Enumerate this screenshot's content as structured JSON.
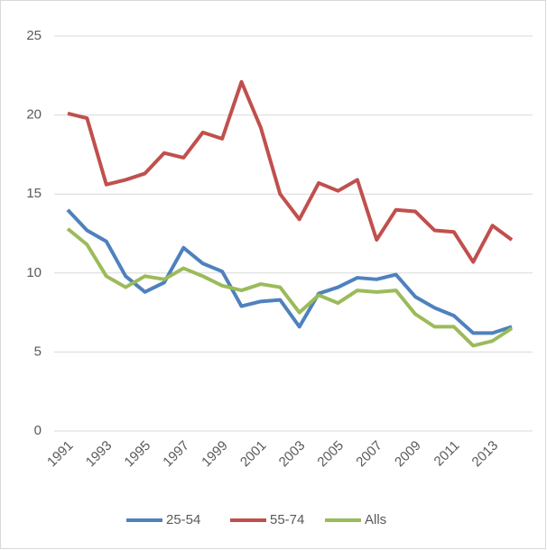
{
  "chart_data": {
    "type": "line",
    "categories": [
      "1991",
      null,
      "1993",
      null,
      "1995",
      null,
      "1997",
      null,
      "1999",
      null,
      "2001",
      null,
      "2003",
      null,
      "2005",
      null,
      "2007",
      null,
      "2009",
      null,
      "2011",
      null,
      "2013",
      null
    ],
    "series": [
      {
        "name": "25-54",
        "color": "#4f81bd",
        "values": [
          14.0,
          12.7,
          12.0,
          9.8,
          8.8,
          9.4,
          11.6,
          10.6,
          10.1,
          7.9,
          8.2,
          8.3,
          6.6,
          8.7,
          9.1,
          9.7,
          9.6,
          9.9,
          8.5,
          7.8,
          7.3,
          6.2,
          6.2,
          6.6
        ]
      },
      {
        "name": "55-74",
        "color": "#c0504d",
        "values": [
          20.1,
          19.8,
          15.6,
          15.9,
          16.3,
          17.6,
          17.3,
          18.9,
          18.5,
          22.1,
          19.2,
          15.0,
          13.4,
          15.7,
          15.2,
          15.9,
          12.1,
          14.0,
          13.9,
          12.7,
          12.6,
          10.7,
          13.0,
          12.1
        ]
      },
      {
        "name": "Alls",
        "color": "#9bbb59",
        "values": [
          12.8,
          11.8,
          9.8,
          9.1,
          9.8,
          9.6,
          10.3,
          9.8,
          9.2,
          8.9,
          9.3,
          9.1,
          7.5,
          8.6,
          8.1,
          8.9,
          8.8,
          8.9,
          7.4,
          6.6,
          6.6,
          5.4,
          5.7,
          6.5
        ]
      }
    ],
    "ylim": [
      0,
      25
    ],
    "yticks": [
      0,
      5,
      10,
      15,
      20,
      25
    ],
    "grid": true,
    "legend": "bottom"
  }
}
